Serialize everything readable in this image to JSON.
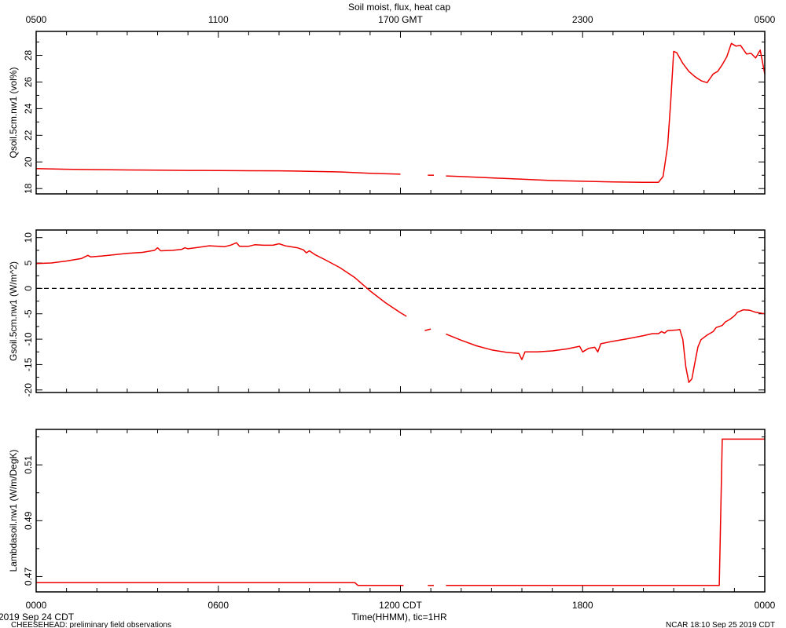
{
  "title": "Soil moist, flux, heat cap",
  "top_axis": {
    "ticks": [
      {
        "t": 0,
        "label": "0500"
      },
      {
        "t": 6,
        "label": "1100"
      },
      {
        "t": 12,
        "label": "1700 GMT"
      },
      {
        "t": 18,
        "label": "2300"
      },
      {
        "t": 24,
        "label": "0500"
      }
    ]
  },
  "bottom_axis": {
    "ticks": [
      {
        "t": 0,
        "label": "0000"
      },
      {
        "t": 6,
        "label": "0600"
      },
      {
        "t": 12,
        "label": "1200 CDT"
      },
      {
        "t": 18,
        "label": "1800"
      },
      {
        "t": 24,
        "label": "0000"
      }
    ],
    "xlabel": "Time(HHMM), tic=1HR"
  },
  "footer": {
    "date": "2019 Sep 24 CDT",
    "project": "CHEESEHEAD: preliminary field observations",
    "stamp": "NCAR 18:10 Sep 25 2019 CDT"
  },
  "colors": {
    "series": "#ee0000",
    "axes": "#000000",
    "zero_line": "#000000"
  },
  "chart_data": [
    {
      "type": "line",
      "ylabel": "Qsoil.5cm.nw1 (vol%)",
      "ylim": [
        17.6,
        29.8
      ],
      "yticks": [
        18,
        20,
        22,
        24,
        26,
        28
      ],
      "ytick_labels": [
        "18",
        "20",
        "22",
        "24",
        "26",
        "28"
      ],
      "xlim": [
        0,
        24
      ],
      "series": [
        {
          "segments": [
            [
              [
                0,
                19.5
              ],
              [
                1,
                19.45
              ],
              [
                2,
                19.42
              ],
              [
                3,
                19.4
              ],
              [
                4,
                19.38
              ],
              [
                5,
                19.36
              ],
              [
                6,
                19.35
              ],
              [
                7,
                19.34
              ],
              [
                8,
                19.33
              ],
              [
                9,
                19.3
              ],
              [
                10,
                19.25
              ],
              [
                11,
                19.15
              ],
              [
                12,
                19.08
              ]
            ],
            [
              [
                12.9,
                19.0
              ],
              [
                13.1,
                19.0
              ]
            ],
            [
              [
                13.5,
                18.95
              ],
              [
                14,
                18.9
              ],
              [
                15,
                18.8
              ],
              [
                16,
                18.7
              ],
              [
                17,
                18.6
              ],
              [
                18,
                18.55
              ],
              [
                19,
                18.5
              ],
              [
                20,
                18.47
              ],
              [
                20.5,
                18.47
              ],
              [
                20.65,
                18.9
              ],
              [
                20.8,
                21.2
              ],
              [
                20.9,
                24.5
              ],
              [
                21,
                28.3
              ],
              [
                21.1,
                28.2
              ],
              [
                21.3,
                27.4
              ],
              [
                21.5,
                26.8
              ],
              [
                21.7,
                26.4
              ],
              [
                21.9,
                26.1
              ],
              [
                22.1,
                25.95
              ],
              [
                22.3,
                26.6
              ],
              [
                22.45,
                26.8
              ],
              [
                22.6,
                27.3
              ],
              [
                22.75,
                27.9
              ],
              [
                22.9,
                28.9
              ],
              [
                23.05,
                28.7
              ],
              [
                23.2,
                28.75
              ],
              [
                23.4,
                28.1
              ],
              [
                23.55,
                28.15
              ],
              [
                23.7,
                27.8
              ],
              [
                23.85,
                28.4
              ],
              [
                24,
                26.6
              ]
            ]
          ]
        }
      ]
    },
    {
      "type": "line",
      "ylabel": "Gsoil.5cm.nw1 (W/m^2)",
      "ylim": [
        -20.5,
        11.5
      ],
      "yticks": [
        -20,
        -15,
        -10,
        -5,
        0,
        5,
        10
      ],
      "ytick_labels": [
        "-20",
        "-15",
        "-10",
        "-5",
        "0",
        "5",
        "10"
      ],
      "xlim": [
        0,
        24
      ],
      "reference_line": 0,
      "series": [
        {
          "segments": [
            [
              [
                0,
                4.9
              ],
              [
                0.5,
                5.0
              ],
              [
                1,
                5.4
              ],
              [
                1.5,
                5.9
              ],
              [
                1.7,
                6.5
              ],
              [
                1.8,
                6.2
              ],
              [
                2.2,
                6.4
              ],
              [
                3,
                6.9
              ],
              [
                3.5,
                7.1
              ],
              [
                3.9,
                7.5
              ],
              [
                4,
                8.0
              ],
              [
                4.1,
                7.4
              ],
              [
                4.5,
                7.5
              ],
              [
                4.8,
                7.7
              ],
              [
                4.9,
                8.0
              ],
              [
                5,
                7.8
              ],
              [
                5.5,
                8.2
              ],
              [
                5.7,
                8.4
              ],
              [
                6,
                8.3
              ],
              [
                6.2,
                8.2
              ],
              [
                6.4,
                8.5
              ],
              [
                6.6,
                9.0
              ],
              [
                6.7,
                8.3
              ],
              [
                7,
                8.3
              ],
              [
                7.2,
                8.6
              ],
              [
                7.5,
                8.5
              ],
              [
                7.8,
                8.5
              ],
              [
                8,
                8.8
              ],
              [
                8.2,
                8.4
              ],
              [
                8.6,
                8.0
              ],
              [
                8.8,
                7.6
              ],
              [
                8.9,
                7.0
              ],
              [
                9,
                7.4
              ],
              [
                9.2,
                6.6
              ],
              [
                9.5,
                5.7
              ],
              [
                10,
                4.1
              ],
              [
                10.5,
                2.1
              ],
              [
                11,
                -0.5
              ],
              [
                11.5,
                -2.8
              ],
              [
                12,
                -4.8
              ],
              [
                12.2,
                -5.5
              ]
            ],
            [
              [
                12.8,
                -8.3
              ],
              [
                13.0,
                -8.0
              ]
            ],
            [
              [
                13.5,
                -9.0
              ],
              [
                14,
                -10.2
              ],
              [
                14.5,
                -11.3
              ],
              [
                15,
                -12.1
              ],
              [
                15.5,
                -12.6
              ],
              [
                15.9,
                -12.8
              ],
              [
                16,
                -14.0
              ],
              [
                16.1,
                -12.5
              ],
              [
                16.5,
                -12.5
              ],
              [
                17,
                -12.3
              ],
              [
                17.5,
                -11.9
              ],
              [
                17.9,
                -11.4
              ],
              [
                18,
                -12.5
              ],
              [
                18.2,
                -11.8
              ],
              [
                18.4,
                -11.6
              ],
              [
                18.5,
                -12.5
              ],
              [
                18.6,
                -10.9
              ],
              [
                19,
                -10.4
              ],
              [
                19.5,
                -9.9
              ],
              [
                20,
                -9.3
              ],
              [
                20.3,
                -8.9
              ],
              [
                20.5,
                -8.9
              ],
              [
                20.6,
                -8.5
              ],
              [
                20.7,
                -8.8
              ],
              [
                20.8,
                -8.3
              ],
              [
                21.1,
                -8.2
              ],
              [
                21.2,
                -8.1
              ],
              [
                21.3,
                -10.0
              ],
              [
                21.4,
                -15.5
              ],
              [
                21.5,
                -18.5
              ],
              [
                21.6,
                -17.8
              ],
              [
                21.7,
                -14.5
              ],
              [
                21.8,
                -11.5
              ],
              [
                21.9,
                -10.1
              ],
              [
                22.1,
                -9.2
              ],
              [
                22.3,
                -8.5
              ],
              [
                22.4,
                -7.7
              ],
              [
                22.6,
                -7.3
              ],
              [
                22.7,
                -6.6
              ],
              [
                22.85,
                -6.1
              ],
              [
                23,
                -5.4
              ],
              [
                23.1,
                -4.7
              ],
              [
                23.3,
                -4.2
              ],
              [
                23.5,
                -4.3
              ],
              [
                23.7,
                -4.7
              ],
              [
                24,
                -5.0
              ]
            ]
          ]
        }
      ]
    },
    {
      "type": "line",
      "ylabel": "Lambdasoil.nw1 (W/m/DegK)",
      "ylim": [
        0.4645,
        0.5227
      ],
      "yticks": [
        0.47,
        0.49,
        0.51
      ],
      "ytick_labels": [
        "0.47",
        "0.49",
        "0.51"
      ],
      "xlim": [
        0,
        24
      ],
      "series": [
        {
          "segments": [
            [
              [
                0,
                0.4678
              ],
              [
                10.5,
                0.4678
              ],
              [
                10.6,
                0.4668
              ],
              [
                12.1,
                0.4668
              ]
            ],
            [
              [
                12.9,
                0.4668
              ],
              [
                13.1,
                0.4668
              ]
            ],
            [
              [
                13.5,
                0.4668
              ],
              [
                22.5,
                0.4668
              ],
              [
                22.6,
                0.5192
              ],
              [
                24,
                0.5192
              ]
            ]
          ]
        }
      ]
    }
  ]
}
